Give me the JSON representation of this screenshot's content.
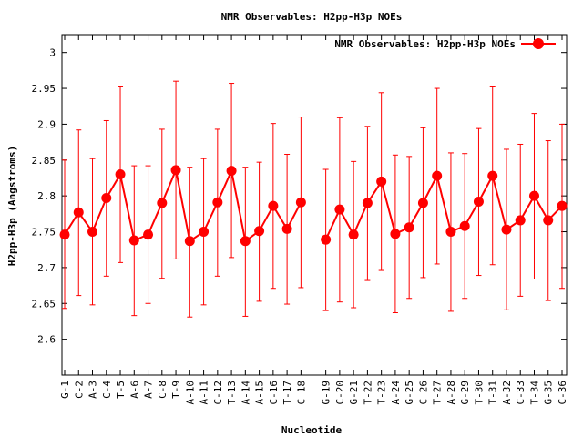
{
  "chart_data": {
    "type": "line",
    "title": "NMR Observables: H2pp-H3p NOEs",
    "xlabel": "Nucleotide",
    "ylabel": "H2pp-H3p (Angstroms)",
    "ylim": [
      2.55,
      3.025
    ],
    "yticks": [
      "2.6",
      "2.65",
      "2.7",
      "2.75",
      "2.8",
      "2.85",
      "2.9",
      "2.95",
      "3"
    ],
    "grid": false,
    "legend": "top-right",
    "color": "#ff0000",
    "series": [
      {
        "name": "NMR Observables: H2pp-H3p NOEs",
        "points": [
          {
            "label": "G-1",
            "y": 2.746,
            "lo": 2.643,
            "hi": 2.85
          },
          {
            "label": "C-2",
            "y": 2.777,
            "lo": 2.661,
            "hi": 2.892
          },
          {
            "label": "A-3",
            "y": 2.75,
            "lo": 2.648,
            "hi": 2.852
          },
          {
            "label": "C-4",
            "y": 2.797,
            "lo": 2.688,
            "hi": 2.905
          },
          {
            "label": "T-5",
            "y": 2.83,
            "lo": 2.707,
            "hi": 2.952
          },
          {
            "label": "A-6",
            "y": 2.738,
            "lo": 2.633,
            "hi": 2.842
          },
          {
            "label": "A-7",
            "y": 2.746,
            "lo": 2.65,
            "hi": 2.842
          },
          {
            "label": "C-8",
            "y": 2.79,
            "lo": 2.685,
            "hi": 2.893
          },
          {
            "label": "T-9",
            "y": 2.836,
            "lo": 2.712,
            "hi": 2.96
          },
          {
            "label": "A-10",
            "y": 2.737,
            "lo": 2.631,
            "hi": 2.84
          },
          {
            "label": "A-11",
            "y": 2.75,
            "lo": 2.648,
            "hi": 2.852
          },
          {
            "label": "C-12",
            "y": 2.791,
            "lo": 2.688,
            "hi": 2.893
          },
          {
            "label": "T-13",
            "y": 2.835,
            "lo": 2.714,
            "hi": 2.957
          },
          {
            "label": "A-14",
            "y": 2.737,
            "lo": 2.632,
            "hi": 2.84
          },
          {
            "label": "A-15",
            "y": 2.751,
            "lo": 2.653,
            "hi": 2.847
          },
          {
            "label": "C-16",
            "y": 2.786,
            "lo": 2.671,
            "hi": 2.901
          },
          {
            "label": "T-17",
            "y": 2.754,
            "lo": 2.649,
            "hi": 2.858
          },
          {
            "label": "C-18",
            "y": 2.791,
            "lo": 2.672,
            "hi": 2.91
          },
          {
            "label": "G-19",
            "y": 2.739,
            "lo": 2.64,
            "hi": 2.837
          },
          {
            "label": "C-20",
            "y": 2.781,
            "lo": 2.652,
            "hi": 2.909
          },
          {
            "label": "G-21",
            "y": 2.746,
            "lo": 2.644,
            "hi": 2.848
          },
          {
            "label": "T-22",
            "y": 2.79,
            "lo": 2.682,
            "hi": 2.897
          },
          {
            "label": "T-23",
            "y": 2.82,
            "lo": 2.696,
            "hi": 2.944
          },
          {
            "label": "A-24",
            "y": 2.747,
            "lo": 2.637,
            "hi": 2.857
          },
          {
            "label": "G-25",
            "y": 2.756,
            "lo": 2.657,
            "hi": 2.855
          },
          {
            "label": "C-26",
            "y": 2.79,
            "lo": 2.686,
            "hi": 2.895
          },
          {
            "label": "T-27",
            "y": 2.828,
            "lo": 2.705,
            "hi": 2.95
          },
          {
            "label": "A-28",
            "y": 2.75,
            "lo": 2.639,
            "hi": 2.86
          },
          {
            "label": "G-29",
            "y": 2.758,
            "lo": 2.657,
            "hi": 2.859
          },
          {
            "label": "T-30",
            "y": 2.792,
            "lo": 2.689,
            "hi": 2.894
          },
          {
            "label": "T-31",
            "y": 2.828,
            "lo": 2.704,
            "hi": 2.952
          },
          {
            "label": "A-32",
            "y": 2.753,
            "lo": 2.641,
            "hi": 2.865
          },
          {
            "label": "C-33",
            "y": 2.766,
            "lo": 2.66,
            "hi": 2.872
          },
          {
            "label": "T-34",
            "y": 2.8,
            "lo": 2.684,
            "hi": 2.915
          },
          {
            "label": "G-35",
            "y": 2.766,
            "lo": 2.654,
            "hi": 2.877
          },
          {
            "label": "C-36",
            "y": 2.786,
            "lo": 2.671,
            "hi": 2.9
          }
        ]
      }
    ]
  }
}
